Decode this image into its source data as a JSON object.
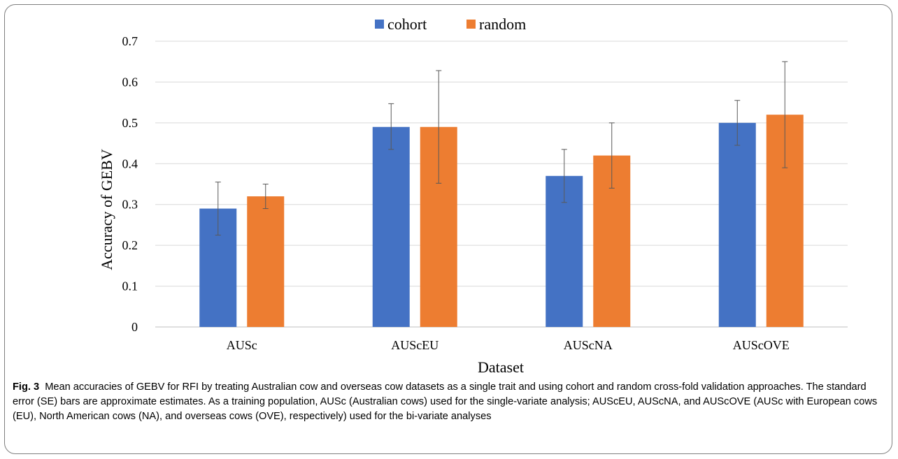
{
  "chart_data": {
    "type": "bar",
    "categories": [
      "AUSc",
      "AUScEU",
      "AUScNA",
      "AUScOVE"
    ],
    "series": [
      {
        "name": "cohort",
        "color": "#4472c4",
        "values": [
          0.29,
          0.49,
          0.37,
          0.5
        ],
        "error_low": [
          0.225,
          0.435,
          0.305,
          0.445
        ],
        "error_high": [
          0.355,
          0.547,
          0.435,
          0.555
        ]
      },
      {
        "name": "random",
        "color": "#ed7d31",
        "values": [
          0.32,
          0.49,
          0.42,
          0.52
        ],
        "error_low": [
          0.29,
          0.352,
          0.34,
          0.39
        ],
        "error_high": [
          0.35,
          0.628,
          0.5,
          0.65
        ]
      }
    ],
    "xlabel": "Dataset",
    "ylabel": "Accuracy of GEBV",
    "ylim": [
      0,
      0.7
    ],
    "yticks": [
      0,
      0.1,
      0.2,
      0.3,
      0.4,
      0.5,
      0.6,
      0.7
    ],
    "ytick_labels": [
      "0",
      "0.1",
      "0.2",
      "0.3",
      "0.4",
      "0.5",
      "0.6",
      "0.7"
    ],
    "grid": true,
    "legend_position": "top-center"
  },
  "caption": {
    "label": "Fig. 3",
    "text": "Mean accuracies of GEBV for RFI by treating Australian cow and overseas cow datasets as a single trait and using cohort and random cross-fold validation approaches. The standard error (SE) bars are approximate estimates. As a training population, AUSc (Australian cows) used for the single-variate analysis; AUScEU, AUScNA, and AUScOVE (AUSc with European cows (EU), North American cows (NA), and overseas cows (OVE), respectively) used for the bi-variate analyses"
  }
}
